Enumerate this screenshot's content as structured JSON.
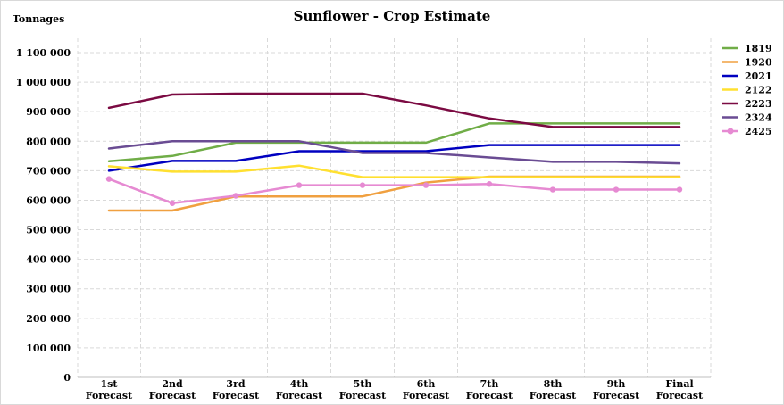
{
  "chart_data": {
    "type": "line",
    "title": "Sunflower - Crop Estimate",
    "ylabel": "Tonnages",
    "xlabel": "",
    "ylim": [
      0,
      1100000
    ],
    "ytick_labels": [
      "0",
      "100 000",
      "200 000",
      "300 000",
      "400 000",
      "500 000",
      "600 000",
      "700 000",
      "800 000",
      "900 000",
      "1 000 000",
      "1 100 000"
    ],
    "categories": [
      [
        "1st",
        "Forecast"
      ],
      [
        "2nd",
        "Forecast"
      ],
      [
        "3rd",
        "Forecast"
      ],
      [
        "4th",
        "Forecast"
      ],
      [
        "5th",
        "Forecast"
      ],
      [
        "6th",
        "Forecast"
      ],
      [
        "7th",
        "Forecast"
      ],
      [
        "8th",
        "Forecast"
      ],
      [
        "9th",
        "Forecast"
      ],
      [
        "Final",
        "Forecast"
      ]
    ],
    "grid": true,
    "legend_position": "right",
    "series": [
      {
        "name": "1819",
        "color": "#70ad47",
        "marker": false,
        "values": [
          732000,
          750000,
          795000,
          795000,
          795000,
          795000,
          860000,
          860000,
          860000,
          860000
        ]
      },
      {
        "name": "1920",
        "color": "#f0a040",
        "marker": false,
        "values": [
          565000,
          565000,
          613000,
          613000,
          613000,
          660000,
          680000,
          680000,
          680000,
          680000
        ]
      },
      {
        "name": "2021",
        "color": "#0000c0",
        "marker": false,
        "values": [
          700000,
          733000,
          733000,
          766000,
          766000,
          766000,
          787000,
          787000,
          787000,
          787000
        ]
      },
      {
        "name": "2122",
        "color": "#ffe030",
        "marker": false,
        "values": [
          715000,
          697000,
          697000,
          717000,
          678000,
          678000,
          678000,
          678000,
          678000,
          678000
        ]
      },
      {
        "name": "2223",
        "color": "#7b0a42",
        "marker": false,
        "values": [
          913000,
          958000,
          961000,
          961000,
          961000,
          921000,
          877000,
          848000,
          848000,
          848000
        ]
      },
      {
        "name": "2324",
        "color": "#6a4c93",
        "marker": false,
        "values": [
          775000,
          800000,
          800000,
          800000,
          760000,
          760000,
          745000,
          730000,
          730000,
          725000
        ]
      },
      {
        "name": "2425",
        "color": "#e68ad2",
        "marker": true,
        "values": [
          672000,
          590000,
          615000,
          651000,
          651000,
          651000,
          655000,
          636000,
          636000,
          636000
        ]
      }
    ]
  }
}
